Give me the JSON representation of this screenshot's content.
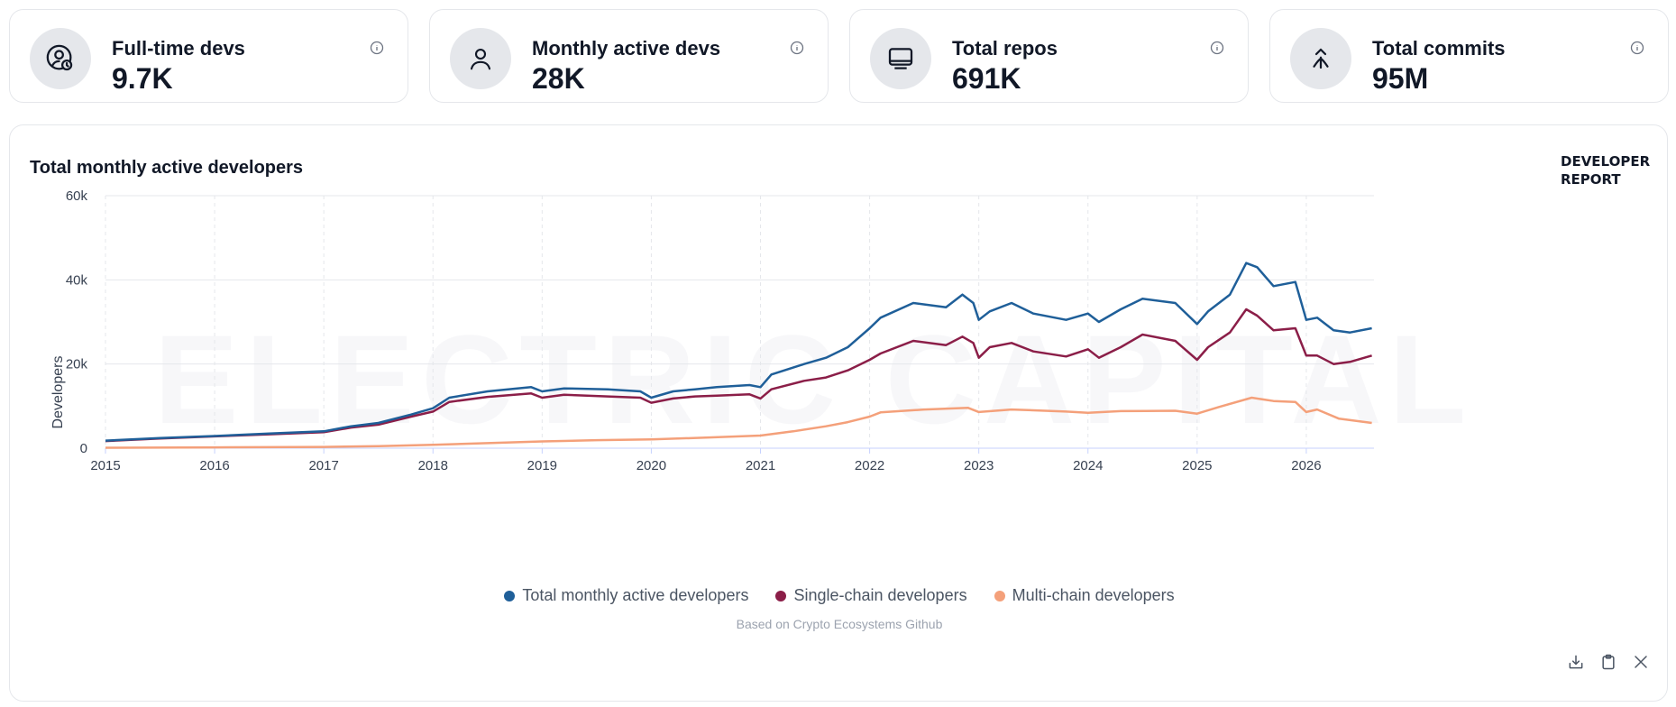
{
  "stats": [
    {
      "label": "Full-time devs",
      "value": "9.7K",
      "icon": "user-clock-icon"
    },
    {
      "label": "Monthly active devs",
      "value": "28K",
      "icon": "user-icon"
    },
    {
      "label": "Total repos",
      "value": "691K",
      "icon": "repo-icon"
    },
    {
      "label": "Total commits",
      "value": "95M",
      "icon": "merge-icon"
    }
  ],
  "chart": {
    "title": "Total monthly active developers",
    "badge": "DEVELOPER REPORT",
    "watermark": "ELECTRIC CAPITAL",
    "source": "Based on Crypto Ecosystems Github"
  },
  "chart_data": {
    "type": "line",
    "ylabel": "Developers",
    "xlabel": "",
    "ylim": [
      0,
      60000
    ],
    "yticks": [
      0,
      20000,
      40000,
      60000
    ],
    "ytick_labels": [
      "0",
      "20k",
      "40k",
      "60k"
    ],
    "xticks": [
      "2015",
      "2016",
      "2017",
      "2018",
      "2019",
      "2020",
      "2021",
      "2022",
      "2023",
      "2024",
      "2025",
      "2026"
    ],
    "xlim": [
      2015.0,
      2026.62
    ],
    "grid": true,
    "legend_position": "bottom",
    "series": [
      {
        "name": "Total monthly active developers",
        "color": "#1f5f99",
        "points": [
          [
            2015.0,
            1800
          ],
          [
            2015.5,
            2400
          ],
          [
            2016.0,
            2900
          ],
          [
            2016.5,
            3500
          ],
          [
            2017.0,
            4000
          ],
          [
            2017.25,
            5200
          ],
          [
            2017.5,
            6000
          ],
          [
            2017.8,
            8000
          ],
          [
            2018.0,
            9500
          ],
          [
            2018.15,
            12000
          ],
          [
            2018.5,
            13500
          ],
          [
            2018.9,
            14500
          ],
          [
            2019.0,
            13500
          ],
          [
            2019.2,
            14200
          ],
          [
            2019.6,
            14000
          ],
          [
            2019.9,
            13500
          ],
          [
            2020.0,
            12000
          ],
          [
            2020.2,
            13500
          ],
          [
            2020.4,
            14000
          ],
          [
            2020.6,
            14500
          ],
          [
            2020.9,
            15000
          ],
          [
            2021.0,
            14500
          ],
          [
            2021.1,
            17500
          ],
          [
            2021.4,
            20000
          ],
          [
            2021.6,
            21500
          ],
          [
            2021.8,
            24000
          ],
          [
            2022.0,
            28500
          ],
          [
            2022.1,
            31000
          ],
          [
            2022.4,
            34500
          ],
          [
            2022.7,
            33500
          ],
          [
            2022.85,
            36500
          ],
          [
            2022.95,
            34500
          ],
          [
            2023.0,
            30500
          ],
          [
            2023.1,
            32500
          ],
          [
            2023.3,
            34500
          ],
          [
            2023.5,
            32000
          ],
          [
            2023.8,
            30500
          ],
          [
            2024.0,
            32000
          ],
          [
            2024.1,
            30000
          ],
          [
            2024.3,
            33000
          ],
          [
            2024.5,
            35500
          ],
          [
            2024.8,
            34500
          ],
          [
            2025.0,
            29500
          ],
          [
            2025.1,
            32500
          ],
          [
            2025.3,
            36500
          ],
          [
            2025.45,
            44000
          ],
          [
            2025.55,
            43000
          ],
          [
            2025.7,
            38500
          ],
          [
            2025.9,
            39500
          ],
          [
            2026.0,
            30500
          ],
          [
            2026.1,
            31000
          ],
          [
            2026.25,
            28000
          ],
          [
            2026.4,
            27500
          ],
          [
            2026.6,
            28500
          ]
        ]
      },
      {
        "name": "Single-chain developers",
        "color": "#8b1e48",
        "points": [
          [
            2015.0,
            1700
          ],
          [
            2015.5,
            2300
          ],
          [
            2016.0,
            2800
          ],
          [
            2016.5,
            3300
          ],
          [
            2017.0,
            3800
          ],
          [
            2017.25,
            4900
          ],
          [
            2017.5,
            5600
          ],
          [
            2017.8,
            7500
          ],
          [
            2018.0,
            8700
          ],
          [
            2018.15,
            11000
          ],
          [
            2018.5,
            12200
          ],
          [
            2018.9,
            13000
          ],
          [
            2019.0,
            12000
          ],
          [
            2019.2,
            12700
          ],
          [
            2019.6,
            12300
          ],
          [
            2019.9,
            12000
          ],
          [
            2020.0,
            10800
          ],
          [
            2020.2,
            11800
          ],
          [
            2020.4,
            12300
          ],
          [
            2020.6,
            12500
          ],
          [
            2020.9,
            12800
          ],
          [
            2021.0,
            11800
          ],
          [
            2021.1,
            14000
          ],
          [
            2021.4,
            16000
          ],
          [
            2021.6,
            16800
          ],
          [
            2021.8,
            18500
          ],
          [
            2022.0,
            21000
          ],
          [
            2022.1,
            22500
          ],
          [
            2022.4,
            25500
          ],
          [
            2022.7,
            24500
          ],
          [
            2022.85,
            26500
          ],
          [
            2022.95,
            25000
          ],
          [
            2023.0,
            21500
          ],
          [
            2023.1,
            24000
          ],
          [
            2023.3,
            25000
          ],
          [
            2023.5,
            23000
          ],
          [
            2023.8,
            21800
          ],
          [
            2024.0,
            23500
          ],
          [
            2024.1,
            21500
          ],
          [
            2024.3,
            24000
          ],
          [
            2024.5,
            27000
          ],
          [
            2024.8,
            25500
          ],
          [
            2025.0,
            21000
          ],
          [
            2025.1,
            24000
          ],
          [
            2025.3,
            27500
          ],
          [
            2025.45,
            33000
          ],
          [
            2025.55,
            31500
          ],
          [
            2025.7,
            28000
          ],
          [
            2025.9,
            28500
          ],
          [
            2026.0,
            22000
          ],
          [
            2026.1,
            22000
          ],
          [
            2026.25,
            20000
          ],
          [
            2026.4,
            20500
          ],
          [
            2026.6,
            22000
          ]
        ]
      },
      {
        "name": "Multi-chain developers",
        "color": "#f4a07a",
        "points": [
          [
            2015.0,
            100
          ],
          [
            2016.0,
            200
          ],
          [
            2017.0,
            300
          ],
          [
            2017.5,
            500
          ],
          [
            2018.0,
            800
          ],
          [
            2018.5,
            1200
          ],
          [
            2019.0,
            1600
          ],
          [
            2019.5,
            1900
          ],
          [
            2020.0,
            2100
          ],
          [
            2020.5,
            2500
          ],
          [
            2021.0,
            3000
          ],
          [
            2021.3,
            4000
          ],
          [
            2021.6,
            5200
          ],
          [
            2021.8,
            6200
          ],
          [
            2022.0,
            7500
          ],
          [
            2022.1,
            8500
          ],
          [
            2022.5,
            9200
          ],
          [
            2022.9,
            9600
          ],
          [
            2023.0,
            8600
          ],
          [
            2023.3,
            9200
          ],
          [
            2023.8,
            8700
          ],
          [
            2024.0,
            8400
          ],
          [
            2024.3,
            8800
          ],
          [
            2024.8,
            8900
          ],
          [
            2025.0,
            8200
          ],
          [
            2025.2,
            9800
          ],
          [
            2025.5,
            12000
          ],
          [
            2025.7,
            11200
          ],
          [
            2025.9,
            11000
          ],
          [
            2026.0,
            8600
          ],
          [
            2026.1,
            9200
          ],
          [
            2026.3,
            7000
          ],
          [
            2026.6,
            6000
          ]
        ]
      }
    ]
  },
  "actions": [
    {
      "name": "download-button",
      "icon": "download-icon"
    },
    {
      "name": "copy-button",
      "icon": "clipboard-icon"
    },
    {
      "name": "share-x-button",
      "icon": "x-icon"
    }
  ]
}
